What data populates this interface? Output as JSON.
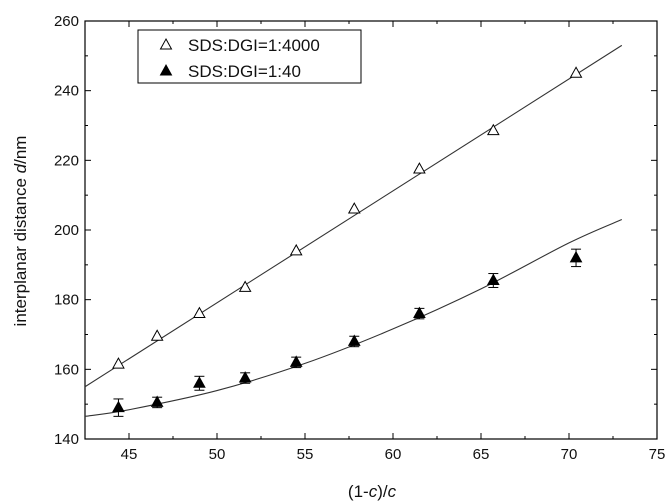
{
  "chart_data": {
    "type": "scatter",
    "xlabel": {
      "pre": "(1-",
      "italic1": "c",
      "mid": ")/",
      "italic2": "c"
    },
    "ylabel": {
      "pre": "interplanar distance ",
      "italic": "d",
      "post": "/nm"
    },
    "xlim": [
      42.5,
      75
    ],
    "ylim": [
      140,
      260
    ],
    "xticks": [
      "45",
      "50",
      "55",
      "60",
      "65",
      "70",
      "75"
    ],
    "yticks": [
      "140",
      "160",
      "180",
      "200",
      "220",
      "240",
      "260"
    ],
    "grid": false,
    "legend_position": "top-left",
    "series": [
      {
        "name": "SDS:DGI=1:4000",
        "marker": "open-triangle",
        "x": [
          44.4,
          46.6,
          49.0,
          51.6,
          54.5,
          57.8,
          61.5,
          65.7,
          70.4
        ],
        "y": [
          161.5,
          169.5,
          176.0,
          183.5,
          194.0,
          206.0,
          217.5,
          228.5,
          245.0
        ],
        "fit": {
          "kind": "linear",
          "x": [
            42.5,
            73.0
          ],
          "y": [
            155.0,
            253.0
          ]
        }
      },
      {
        "name": "SDS:DGI=1:40",
        "marker": "filled-triangle",
        "x": [
          44.4,
          46.6,
          49.0,
          51.6,
          54.5,
          57.8,
          61.5,
          65.7,
          70.4
        ],
        "y": [
          149.0,
          150.5,
          156.0,
          157.5,
          162.0,
          168.0,
          176.0,
          185.5,
          192.0
        ],
        "yerr": [
          2.5,
          1.5,
          2.0,
          1.5,
          1.5,
          1.5,
          1.5,
          2.0,
          2.5
        ],
        "fit": {
          "kind": "curve",
          "x": [
            42.5,
            45,
            50,
            55,
            60,
            65,
            70,
            73
          ],
          "y": [
            146.5,
            148.4,
            153.9,
            161.7,
            171.6,
            183.1,
            196.3,
            203.0
          ]
        }
      }
    ]
  }
}
